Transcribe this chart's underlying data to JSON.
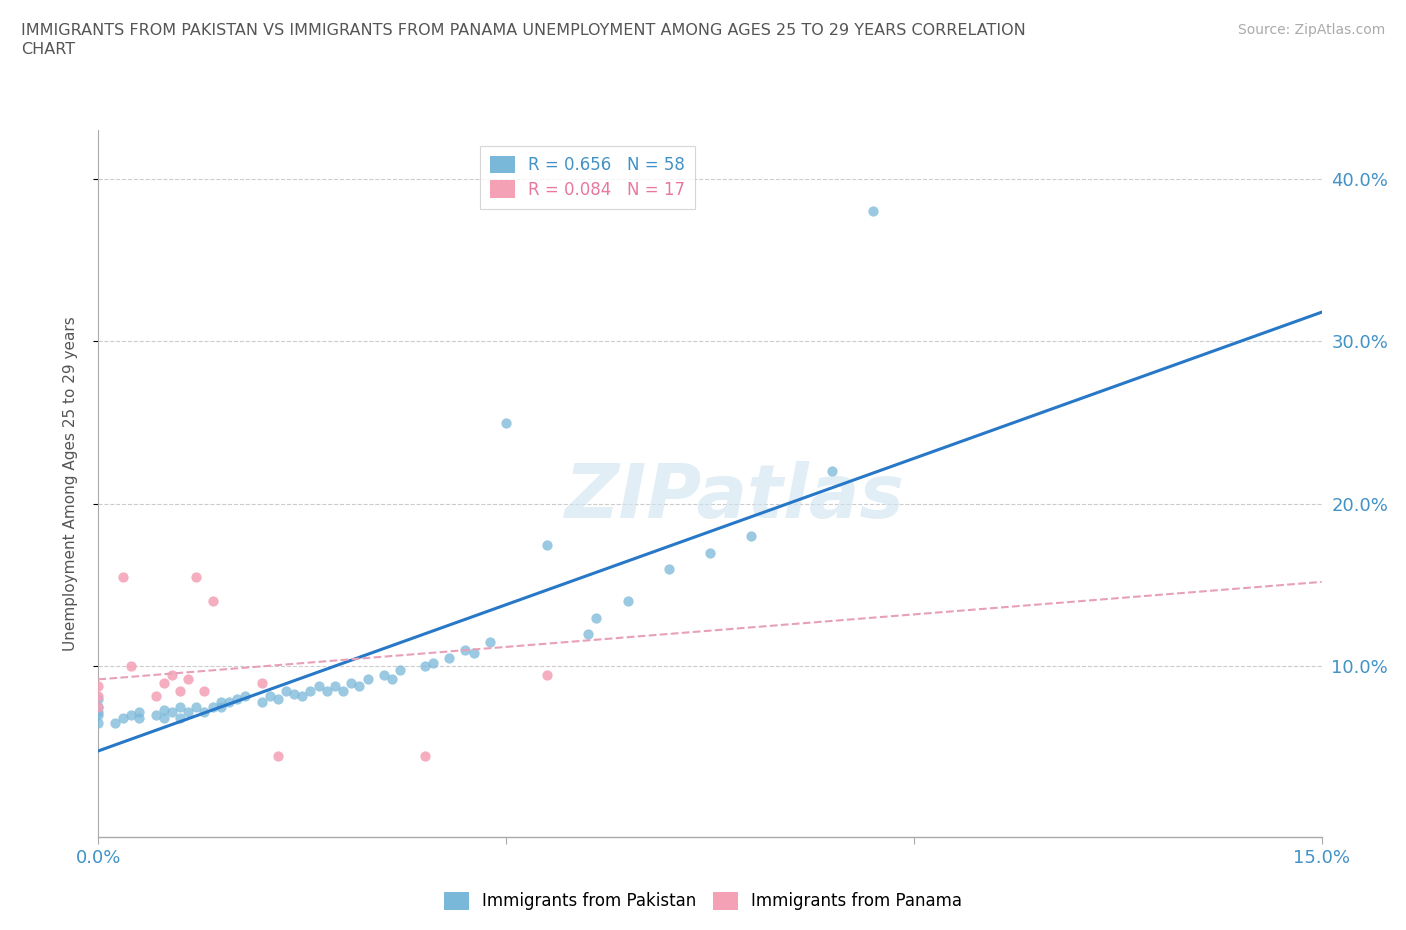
{
  "title_line1": "IMMIGRANTS FROM PAKISTAN VS IMMIGRANTS FROM PANAMA UNEMPLOYMENT AMONG AGES 25 TO 29 YEARS CORRELATION",
  "title_line2": "CHART",
  "source": "Source: ZipAtlas.com",
  "ylabel": "Unemployment Among Ages 25 to 29 years",
  "xlim": [
    0.0,
    0.15
  ],
  "ylim": [
    -0.005,
    0.43
  ],
  "yticks": [
    0.1,
    0.2,
    0.3,
    0.4
  ],
  "ytick_labels": [
    "10.0%",
    "20.0%",
    "30.0%",
    "40.0%"
  ],
  "legend_r1": "R = 0.656   N = 58",
  "legend_r2": "R = 0.084   N = 17",
  "color_pakistan": "#7ab8d9",
  "color_panama": "#f4a0b5",
  "line_color_pakistan": "#2878c8",
  "line_color_panama": "#e8a0b8",
  "watermark": "ZIPatlas",
  "pakistan_scatter_x": [
    0.0,
    0.0,
    0.0,
    0.0,
    0.0,
    0.002,
    0.003,
    0.004,
    0.005,
    0.005,
    0.007,
    0.008,
    0.008,
    0.009,
    0.01,
    0.01,
    0.011,
    0.012,
    0.013,
    0.014,
    0.015,
    0.015,
    0.016,
    0.017,
    0.018,
    0.02,
    0.021,
    0.022,
    0.023,
    0.024,
    0.025,
    0.026,
    0.027,
    0.028,
    0.029,
    0.03,
    0.031,
    0.032,
    0.033,
    0.035,
    0.036,
    0.037,
    0.04,
    0.041,
    0.043,
    0.045,
    0.046,
    0.048,
    0.05,
    0.055,
    0.06,
    0.061,
    0.065,
    0.07,
    0.075,
    0.08,
    0.09,
    0.095
  ],
  "pakistan_scatter_y": [
    0.065,
    0.07,
    0.072,
    0.075,
    0.08,
    0.065,
    0.068,
    0.07,
    0.068,
    0.072,
    0.07,
    0.068,
    0.073,
    0.072,
    0.068,
    0.075,
    0.072,
    0.075,
    0.072,
    0.075,
    0.075,
    0.078,
    0.078,
    0.08,
    0.082,
    0.078,
    0.082,
    0.08,
    0.085,
    0.083,
    0.082,
    0.085,
    0.088,
    0.085,
    0.088,
    0.085,
    0.09,
    0.088,
    0.092,
    0.095,
    0.092,
    0.098,
    0.1,
    0.102,
    0.105,
    0.11,
    0.108,
    0.115,
    0.25,
    0.175,
    0.12,
    0.13,
    0.14,
    0.16,
    0.17,
    0.18,
    0.22,
    0.38
  ],
  "panama_scatter_x": [
    0.0,
    0.0,
    0.0,
    0.003,
    0.004,
    0.007,
    0.008,
    0.009,
    0.01,
    0.011,
    0.012,
    0.013,
    0.014,
    0.02,
    0.022,
    0.04,
    0.055
  ],
  "panama_scatter_y": [
    0.075,
    0.082,
    0.088,
    0.155,
    0.1,
    0.082,
    0.09,
    0.095,
    0.085,
    0.092,
    0.155,
    0.085,
    0.14,
    0.09,
    0.045,
    0.045,
    0.095
  ],
  "pakistan_line_x": [
    0.0,
    0.15
  ],
  "pakistan_line_y": [
    0.048,
    0.318
  ],
  "panama_line_x": [
    0.0,
    0.15
  ],
  "panama_line_y": [
    0.092,
    0.152
  ],
  "grid_color": "#cccccc",
  "background_color": "#ffffff"
}
